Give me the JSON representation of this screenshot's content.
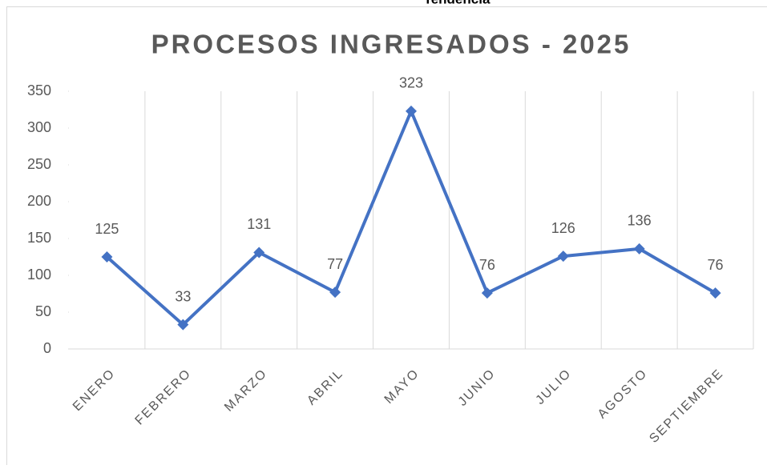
{
  "chart_data": {
    "type": "line",
    "title": "PROCESOS INGRESADOS - 2025",
    "annotations": [
      "Tendencia"
    ],
    "categories": [
      "ENERO",
      "FEBRERO",
      "MARZO",
      "ABRIL",
      "MAYO",
      "JUNIO",
      "JULIO",
      "AGOSTO",
      "SEPTIEMBRE"
    ],
    "series": [
      {
        "name": "Procesos",
        "color": "#4472c4",
        "values": [
          125,
          33,
          131,
          77,
          323,
          76,
          126,
          136,
          76
        ]
      }
    ],
    "ylim": [
      0,
      350
    ],
    "yticks": [
      0,
      50,
      100,
      150,
      200,
      250,
      300,
      350
    ],
    "grid": "vertical",
    "data_labels": true,
    "legend": false
  }
}
